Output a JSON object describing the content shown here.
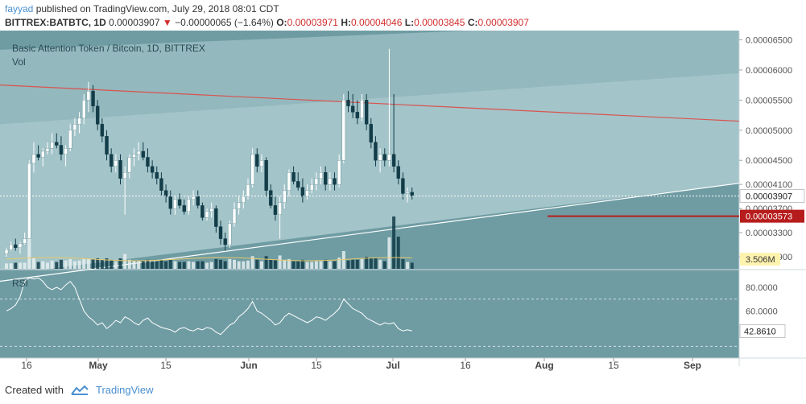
{
  "header": {
    "author": "fayyad",
    "published_text": "published on TradingView.com, July 29, 2018 08:01 CDT",
    "symbol": "BITTREX:BATBTC, 1D",
    "last": "0.00003907",
    "change": "−0.00000065 (−1.64%)",
    "o_label": "O:",
    "o": "0.00003971",
    "h_label": "H:",
    "h": "0.00004046",
    "l_label": "L:",
    "l": "0.00003845",
    "c_label": "C:",
    "c": "0.00003907"
  },
  "chart": {
    "title": "Basic Attention Token / Bitcoin, 1D, BITTREX",
    "vol_label": "Vol",
    "rsi_label": "RSI",
    "price_labels": [
      "0.00006500",
      "0.00006000",
      "0.00005500",
      "0.00005000",
      "0.00004500",
      "0.00004100",
      "0.00003700",
      "0.00003300",
      "0.00002900"
    ],
    "last_price_tag": "0.00003907",
    "line_price_tag": "0.00003573",
    "volume_tag": "3.506M",
    "rsi_axis_labels": [
      "80.0000",
      "60.0000"
    ],
    "rsi_value_tag": "42.8610",
    "x_labels": [
      "16",
      "May",
      "15",
      "Jun",
      "15",
      "Jul",
      "16",
      "Aug",
      "15",
      "Sep"
    ],
    "colors": {
      "bg_dark": "#6f9ca3",
      "bg_light": "#a9c9cd",
      "bg_mid": "#9fc1c6",
      "up": "#ffffff",
      "down": "#123c48",
      "resistance": "#d9534f",
      "last_tag": "#ffffff",
      "line_tag": "#b71c1c",
      "volume_tag": "#fff3b0"
    }
  },
  "chart_data": {
    "type": "candlestick",
    "title": "Basic Attention Token / Bitcoin, 1D, BITTREX",
    "x_start": "2018-04-12",
    "x_end": "2018-07-29",
    "y_range": [
      2.7e-05,
      6.6e-05
    ],
    "series": [
      {
        "values": [
          [
            2.95,
            3.05,
            2.9,
            3.02
          ],
          [
            3.02,
            3.15,
            3.0,
            3.1
          ],
          [
            3.1,
            3.2,
            3.0,
            3.05
          ],
          [
            3.05,
            3.15,
            2.95,
            3.12
          ],
          [
            3.12,
            3.3,
            3.1,
            3.2
          ],
          [
            3.2,
            4.5,
            3.2,
            4.45
          ],
          [
            4.45,
            4.8,
            4.3,
            4.6
          ],
          [
            4.6,
            4.75,
            4.5,
            4.55
          ],
          [
            4.55,
            4.7,
            4.4,
            4.65
          ],
          [
            4.65,
            4.8,
            4.6,
            4.7
          ],
          [
            4.7,
            4.95,
            4.6,
            4.8
          ],
          [
            4.8,
            4.95,
            4.7,
            4.75
          ],
          [
            4.75,
            4.9,
            4.5,
            4.6
          ],
          [
            4.6,
            4.75,
            4.4,
            4.7
          ],
          [
            4.7,
            5.1,
            4.65,
            5.0
          ],
          [
            5.0,
            5.2,
            4.9,
            5.1
          ],
          [
            5.1,
            5.3,
            4.95,
            5.2
          ],
          [
            5.2,
            5.6,
            5.1,
            5.5
          ],
          [
            5.5,
            5.8,
            5.3,
            5.65
          ],
          [
            5.65,
            5.75,
            5.3,
            5.4
          ],
          [
            5.4,
            5.5,
            5.0,
            5.1
          ],
          [
            5.1,
            5.2,
            4.8,
            4.9
          ],
          [
            4.9,
            5.0,
            4.5,
            4.6
          ],
          [
            4.6,
            4.7,
            4.3,
            4.4
          ],
          [
            4.4,
            4.6,
            4.3,
            4.5
          ],
          [
            4.5,
            4.6,
            4.1,
            4.2
          ],
          [
            4.2,
            4.4,
            3.6,
            4.3
          ],
          [
            4.3,
            4.6,
            4.2,
            4.55
          ],
          [
            4.55,
            4.7,
            4.4,
            4.6
          ],
          [
            4.6,
            4.8,
            4.5,
            4.65
          ],
          [
            4.65,
            4.8,
            4.5,
            4.55
          ],
          [
            4.55,
            4.7,
            4.3,
            4.4
          ],
          [
            4.4,
            4.5,
            4.2,
            4.3
          ],
          [
            4.3,
            4.4,
            4.1,
            4.2
          ],
          [
            4.2,
            4.3,
            3.9,
            4.0
          ],
          [
            4.0,
            4.1,
            3.8,
            3.9
          ],
          [
            3.9,
            4.0,
            3.6,
            3.7
          ],
          [
            3.7,
            3.9,
            3.6,
            3.85
          ],
          [
            3.85,
            3.95,
            3.7,
            3.75
          ],
          [
            3.75,
            3.85,
            3.6,
            3.65
          ],
          [
            3.65,
            3.9,
            3.6,
            3.85
          ],
          [
            3.85,
            4.0,
            3.75,
            3.9
          ],
          [
            3.9,
            4.0,
            3.7,
            3.75
          ],
          [
            3.75,
            3.8,
            3.5,
            3.55
          ],
          [
            3.55,
            3.7,
            3.5,
            3.65
          ],
          [
            3.65,
            3.8,
            3.55,
            3.7
          ],
          [
            3.7,
            3.75,
            3.3,
            3.4
          ],
          [
            3.4,
            3.5,
            3.1,
            3.2
          ],
          [
            3.2,
            3.3,
            3.0,
            3.1
          ],
          [
            3.1,
            3.5,
            3.05,
            3.45
          ],
          [
            3.45,
            3.8,
            3.4,
            3.7
          ],
          [
            3.7,
            3.9,
            3.6,
            3.8
          ],
          [
            3.8,
            4.0,
            3.7,
            3.9
          ],
          [
            3.9,
            4.2,
            3.85,
            4.1
          ],
          [
            4.1,
            4.7,
            4.05,
            4.6
          ],
          [
            4.6,
            4.7,
            4.3,
            4.4
          ],
          [
            4.4,
            4.6,
            4.3,
            4.5
          ],
          [
            4.5,
            4.55,
            3.9,
            4.0
          ],
          [
            4.0,
            4.1,
            3.7,
            3.75
          ],
          [
            3.75,
            3.9,
            3.5,
            3.6
          ],
          [
            3.6,
            3.9,
            3.2,
            3.8
          ],
          [
            3.8,
            4.1,
            3.7,
            4.0
          ],
          [
            4.0,
            4.35,
            3.9,
            4.3
          ],
          [
            4.3,
            4.4,
            4.1,
            4.15
          ],
          [
            4.15,
            4.3,
            4.0,
            4.05
          ],
          [
            4.05,
            4.2,
            3.8,
            3.9
          ],
          [
            3.9,
            4.1,
            3.85,
            4.0
          ],
          [
            4.0,
            4.2,
            3.95,
            4.1
          ],
          [
            4.1,
            4.3,
            4.0,
            4.2
          ],
          [
            4.2,
            4.4,
            4.1,
            4.3
          ],
          [
            4.3,
            4.4,
            4.0,
            4.1
          ],
          [
            4.1,
            4.3,
            4.0,
            4.2
          ],
          [
            4.2,
            4.3,
            4.0,
            4.1
          ],
          [
            4.1,
            4.6,
            4.05,
            4.5
          ],
          [
            4.5,
            5.6,
            4.45,
            5.5
          ],
          [
            5.5,
            5.65,
            5.3,
            5.4
          ],
          [
            5.4,
            5.6,
            5.2,
            5.3
          ],
          [
            5.3,
            5.5,
            5.1,
            5.2
          ],
          [
            5.2,
            5.6,
            5.15,
            5.5
          ],
          [
            5.5,
            5.6,
            5.0,
            5.1
          ],
          [
            5.1,
            5.2,
            4.7,
            4.8
          ],
          [
            4.8,
            4.9,
            4.4,
            4.5
          ],
          [
            4.5,
            4.7,
            4.3,
            4.6
          ],
          [
            4.6,
            4.7,
            4.4,
            4.5
          ],
          [
            4.5,
            6.35,
            4.4,
            4.6
          ],
          [
            4.6,
            5.6,
            4.3,
            4.4
          ],
          [
            4.4,
            4.5,
            4.1,
            4.2
          ],
          [
            4.2,
            4.3,
            3.85,
            3.95
          ],
          [
            3.95,
            4.05,
            3.8,
            3.97
          ],
          [
            3.97,
            4.05,
            3.85,
            3.91
          ]
        ]
      }
    ],
    "volume_label": "Vol",
    "rsi": {
      "label": "RSI",
      "values": [
        60,
        62,
        65,
        72,
        85,
        88,
        87,
        88,
        85,
        80,
        78,
        80,
        78,
        82,
        85,
        80,
        70,
        60,
        55,
        52,
        48,
        50,
        45,
        48,
        52,
        50,
        55,
        53,
        50,
        48,
        52,
        54,
        50,
        48,
        46,
        45,
        44,
        42,
        45,
        46,
        44,
        43,
        45,
        44,
        46,
        45,
        42,
        40,
        44,
        48,
        50,
        55,
        58,
        62,
        68,
        60,
        58,
        55,
        52,
        48,
        50,
        55,
        58,
        56,
        54,
        52,
        50,
        52,
        55,
        54,
        52,
        55,
        58,
        62,
        70,
        66,
        62,
        60,
        58,
        54,
        52,
        50,
        48,
        50,
        49,
        50,
        45,
        43,
        44,
        43
      ]
    },
    "price_axis_labels": [
      "0.00006500",
      "0.00006000",
      "0.00005500",
      "0.00005000",
      "0.00004500",
      "0.00004100",
      "0.00003700",
      "0.00003300",
      "0.00002900"
    ],
    "x_tick_labels": [
      "16",
      "May",
      "15",
      "Jun",
      "15",
      "Jul",
      "16",
      "Aug",
      "15",
      "Sep"
    ]
  }
}
